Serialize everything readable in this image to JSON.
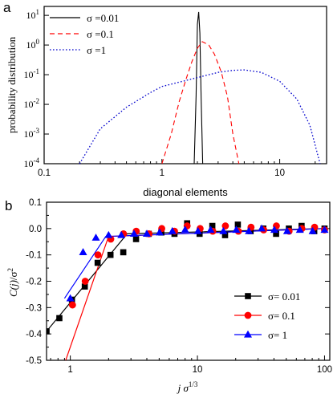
{
  "chart_data": [
    {
      "panel": "a",
      "type": "line",
      "xlabel": "diagonal elements",
      "ylabel": "probability distribution",
      "xscale": "log",
      "yscale": "log",
      "xlim": [
        0.1,
        25
      ],
      "ylim": [
        0.0001,
        20
      ],
      "xticks": [
        "0.1",
        "1",
        "10"
      ],
      "yticks": [
        "10-4",
        "10-3",
        "10-2",
        "10-1",
        "100",
        "101"
      ],
      "legend_placement": "top-left",
      "series": [
        {
          "name": "σ =0.01",
          "color": "#000000",
          "style": "solid",
          "x": [
            1.88,
            1.95,
            2.0,
            2.05,
            2.1,
            2.15,
            2.22
          ],
          "y": [
            0.0001,
            0.02,
            5,
            13,
            2.5,
            0.02,
            0.0001
          ]
        },
        {
          "name": "σ =0.1",
          "color": "#ff0000",
          "style": "dashed",
          "x": [
            1.0,
            1.2,
            1.4,
            1.6,
            1.8,
            2.0,
            2.2,
            2.5,
            2.8,
            3.2,
            3.6,
            4.0,
            4.5
          ],
          "y": [
            0.0001,
            0.001,
            0.012,
            0.07,
            0.28,
            0.78,
            1.3,
            1.0,
            0.48,
            0.12,
            0.018,
            0.001,
            0.0001
          ]
        },
        {
          "name": "σ =1",
          "color": "#0000cc",
          "style": "dotted",
          "x": [
            0.2,
            0.3,
            0.5,
            0.8,
            1.0,
            1.5,
            2.0,
            3.0,
            4.0,
            5.0,
            7.0,
            10.0,
            14.0,
            18.0,
            22.0
          ],
          "y": [
            0.0001,
            0.0015,
            0.008,
            0.025,
            0.04,
            0.06,
            0.08,
            0.12,
            0.14,
            0.145,
            0.12,
            0.06,
            0.015,
            0.002,
            0.0001
          ]
        }
      ]
    },
    {
      "panel": "b",
      "type": "scatter",
      "xlabel": "j σ1/3",
      "ylabel": "C(j)/σ2",
      "xscale": "log",
      "xlim": [
        0.65,
        110
      ],
      "ylim": [
        -0.5,
        0.1
      ],
      "xticks": [
        "1",
        "10",
        "100"
      ],
      "yticks": [
        "0.1",
        "0.0",
        "-0.1",
        "-0.2",
        "-0.3",
        "-0.4",
        "-0.5"
      ],
      "legend_placement": "bottom-right",
      "series": [
        {
          "name": "σ= 0.01",
          "color": "#000000",
          "marker": "square",
          "x": [
            0.65,
            0.82,
            1.03,
            1.3,
            1.64,
            2.07,
            2.61,
            3.29,
            4.14,
            5.2,
            6.6,
            8.3,
            10.4,
            13.1,
            16.5,
            20.8,
            26.2,
            33,
            41.6,
            52.4,
            66,
            83,
            100
          ],
          "y": [
            -0.39,
            -0.34,
            -0.27,
            -0.22,
            -0.13,
            -0.1,
            -0.09,
            -0.04,
            -0.02,
            -0.015,
            -0.02,
            0.02,
            -0.02,
            0.01,
            -0.025,
            0.015,
            -0.01,
            0.0,
            -0.02,
            0.0,
            0.01,
            -0.01,
            0.0
          ],
          "fit_line": {
            "x": [
              0.65,
              2.8,
              100
            ],
            "y": [
              -0.39,
              -0.02,
              0.0
            ]
          }
        },
        {
          "name": "σ= 0.1",
          "color": "#ff0000",
          "marker": "circle",
          "x": [
            1.04,
            1.31,
            1.65,
            2.08,
            2.62,
            3.3,
            4.16,
            5.24,
            6.6,
            8.3,
            10.5,
            13.2,
            16.6,
            21,
            26.4,
            33.2,
            41.8,
            52.6,
            66.3,
            83.5,
            100
          ],
          "y": [
            -0.29,
            -0.2,
            -0.1,
            -0.04,
            -0.02,
            -0.01,
            -0.02,
            0.0,
            -0.01,
            0.01,
            0.0,
            -0.01,
            0.01,
            -0.01,
            0.005,
            -0.005,
            0.01,
            -0.01,
            0.0,
            0.005,
            -0.005
          ],
          "fit_line": {
            "x": [
              0.92,
              2.0,
              100
            ],
            "y": [
              -0.5,
              -0.03,
              0.0
            ]
          }
        },
        {
          "name": "σ= 1",
          "color": "#0000ff",
          "marker": "triangle",
          "x": [
            1.0,
            1.26,
            1.59,
            2.0,
            2.52,
            3.17,
            4.0,
            5.04,
            6.35,
            8.0,
            10.1,
            12.7,
            16,
            20.2,
            25.4,
            32,
            40.3,
            50.8,
            64,
            80.6,
            100
          ],
          "y": [
            -0.265,
            -0.09,
            -0.035,
            -0.025,
            -0.025,
            -0.02,
            -0.02,
            -0.015,
            -0.01,
            -0.005,
            -0.01,
            -0.005,
            -0.01,
            -0.005,
            -0.01,
            0.0,
            -0.005,
            -0.01,
            -0.005,
            -0.01,
            -0.005
          ],
          "fit_line": {
            "x": [
              0.9,
              1.9,
              100
            ],
            "y": [
              -0.265,
              -0.03,
              0.0
            ]
          }
        }
      ]
    }
  ]
}
